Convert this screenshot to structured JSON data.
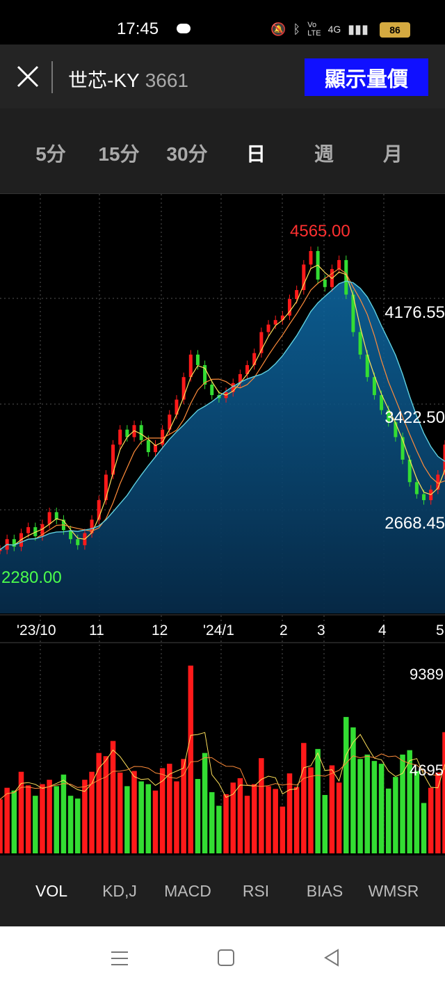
{
  "status": {
    "time": "17:45",
    "battery": "86",
    "network": "4G"
  },
  "header": {
    "stock_name": "世芯-KY",
    "stock_code": "3661",
    "show_button": "顯示量價"
  },
  "periods": [
    "5分",
    "15分",
    "30分",
    "日",
    "週",
    "月"
  ],
  "active_period": "日",
  "price_axis": {
    "labels": [
      "4176.55",
      "3422.50",
      "2668.45"
    ],
    "high": "4565.00",
    "low": "2280.00"
  },
  "date_axis": [
    "'23/10",
    "11",
    "12",
    "'24/1",
    "2",
    "3",
    "4",
    "5"
  ],
  "volume_axis": {
    "labels": [
      "9389",
      "4695"
    ]
  },
  "indicators": [
    "VOL",
    "KD,J",
    "MACD",
    "RSI",
    "BIAS",
    "WMSR"
  ],
  "active_indicator": "VOL",
  "colors": {
    "up": "#ff1a1a",
    "down": "#33dd33",
    "accent_button": "#1010ff",
    "area_fill": "#0b4a7a"
  },
  "chart_data": {
    "type": "line",
    "price_ylim": [
      2280,
      4565
    ],
    "series": [
      {
        "values": [
          2450,
          2520,
          2470,
          2560,
          2600,
          2540,
          2620,
          2700,
          2650,
          2580,
          2520,
          2480,
          2560,
          2650,
          2780,
          2950,
          3150,
          3250,
          3200,
          3280,
          3180,
          3100,
          3150,
          3250,
          3350,
          3450,
          3600,
          3750,
          3680,
          3550,
          3480,
          3460,
          3500,
          3560,
          3620,
          3680,
          3760,
          3900,
          3950,
          3980,
          4010,
          4120,
          4180,
          4350,
          4440,
          4250,
          4200,
          4320,
          4380,
          4150,
          3900,
          3750,
          3600,
          3480,
          3380,
          3300,
          3200,
          3050,
          2900,
          2820,
          2780,
          2850,
          2950,
          3150
        ]
      }
    ],
    "volume_ylim": [
      0,
      9389
    ]
  }
}
